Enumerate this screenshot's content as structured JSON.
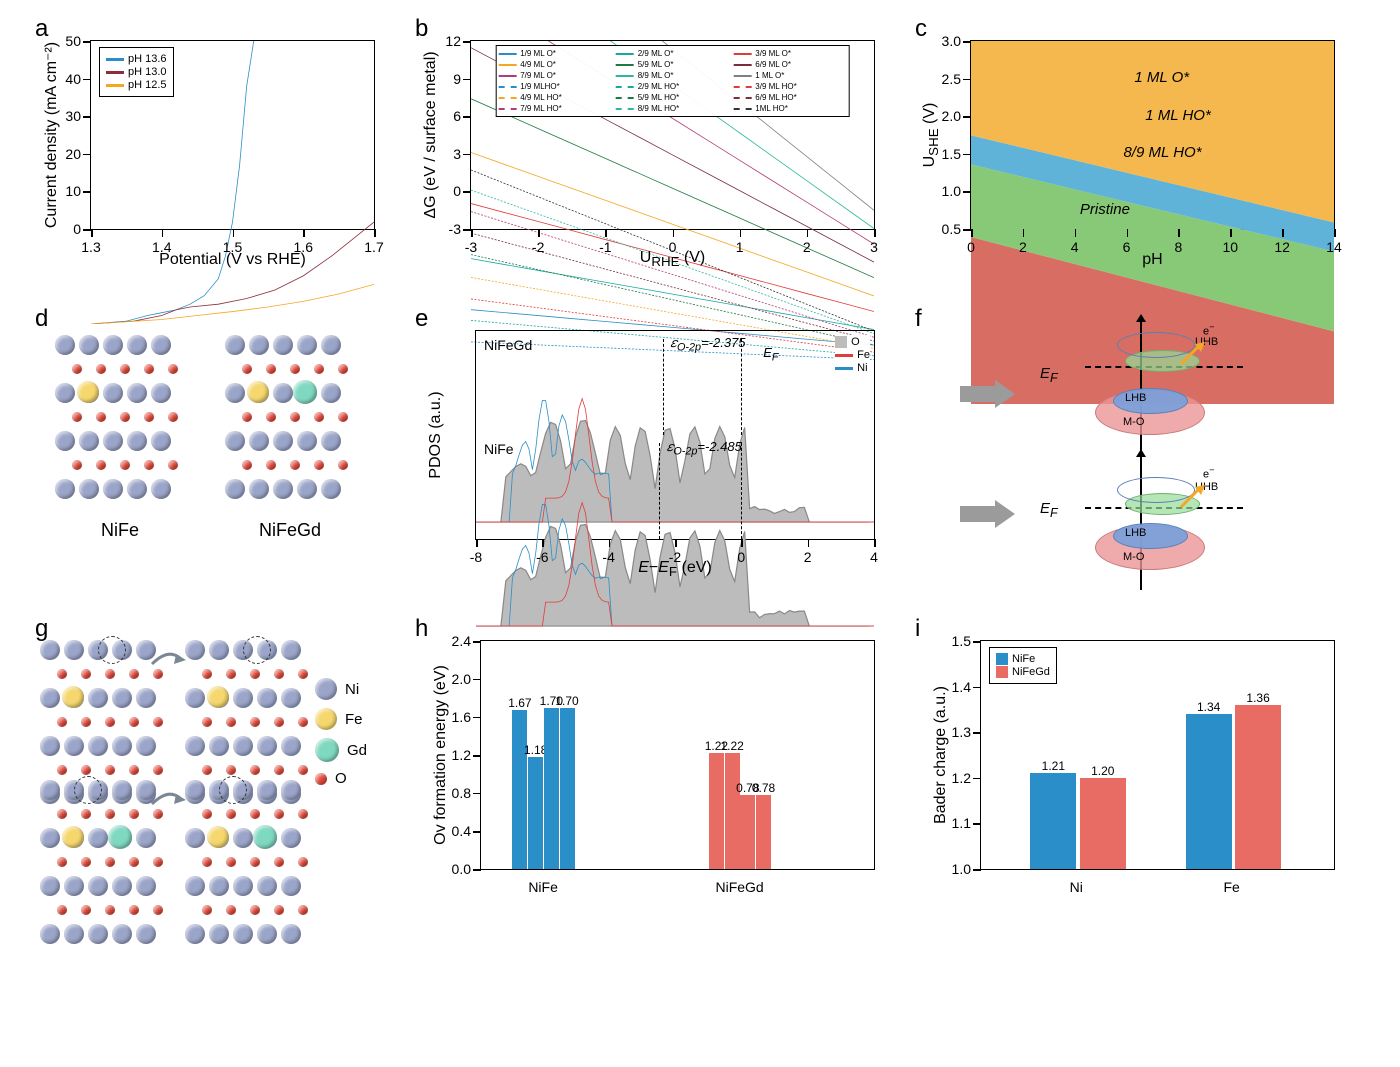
{
  "labels": {
    "a": "a",
    "b": "b",
    "c": "c",
    "d": "d",
    "e": "e",
    "f": "f",
    "g": "g",
    "h": "h",
    "i": "i"
  },
  "colors": {
    "blue": "#2a8fc9",
    "darkred": "#8b2e3c",
    "orange": "#f5a623",
    "red_bar": "#e86c63",
    "red_region": "#d86e63",
    "green_region": "#88c978",
    "blue_region": "#5fb3d9",
    "yellow_region": "#f5b84f",
    "ni_atom": "#9ba5c9",
    "fe_atom": "#f5d76e",
    "gd_atom": "#7fd8c0",
    "o_atom": "#e94b3c",
    "gray_arrow": "#9b9b9b"
  },
  "panel_a": {
    "type": "line",
    "xlabel": "Potential (V vs RHE)",
    "ylabel": "Current density (mA cm⁻²)",
    "xlim": [
      1.3,
      1.7
    ],
    "xtick_step": 0.1,
    "ylim": [
      0,
      50
    ],
    "ytick_step": 10,
    "series": [
      {
        "name": "pH 13.6",
        "color": "#2a8fc9",
        "points": [
          [
            1.3,
            0
          ],
          [
            1.35,
            0.5
          ],
          [
            1.38,
            1.5
          ],
          [
            1.4,
            2
          ],
          [
            1.42,
            2.5
          ],
          [
            1.44,
            3.5
          ],
          [
            1.46,
            5
          ],
          [
            1.48,
            8
          ],
          [
            1.49,
            12
          ],
          [
            1.5,
            18
          ],
          [
            1.51,
            28
          ],
          [
            1.52,
            42
          ],
          [
            1.53,
            50
          ]
        ]
      },
      {
        "name": "pH 13.0",
        "color": "#8b2e3c",
        "points": [
          [
            1.3,
            0
          ],
          [
            1.36,
            0.5
          ],
          [
            1.4,
            1.5
          ],
          [
            1.42,
            2.5
          ],
          [
            1.44,
            3
          ],
          [
            1.48,
            3.5
          ],
          [
            1.52,
            4.5
          ],
          [
            1.56,
            6
          ],
          [
            1.6,
            8.5
          ],
          [
            1.64,
            12
          ],
          [
            1.68,
            16
          ],
          [
            1.7,
            18
          ]
        ]
      },
      {
        "name": "pH 12.5",
        "color": "#f5a623",
        "points": [
          [
            1.3,
            0
          ],
          [
            1.4,
            0.8
          ],
          [
            1.45,
            1.5
          ],
          [
            1.5,
            2.2
          ],
          [
            1.55,
            3
          ],
          [
            1.6,
            4
          ],
          [
            1.65,
            5.3
          ],
          [
            1.7,
            7
          ]
        ]
      }
    ]
  },
  "panel_b": {
    "type": "line",
    "xlabel": "Uᴿᴴᴱ (V)",
    "xlabel_rich": "U_RHE (V)",
    "ylabel": "ΔG (eV / surface metal)",
    "xlim": [
      -3,
      3
    ],
    "xtick_step": 1,
    "ylim": [
      -3,
      12
    ],
    "ytick_step": 3,
    "legend_cols": 3,
    "series": [
      {
        "name": "1/9 ML O*",
        "color": "#2a8fc9",
        "dash": false,
        "g0": 0.9,
        "slope": -0.22
      },
      {
        "name": "2/9 ML O*",
        "color": "#17a9a0",
        "dash": false,
        "g0": 1.7,
        "slope": -0.44
      },
      {
        "name": "3/9 ML O*",
        "color": "#e13c3c",
        "dash": false,
        "g0": 2.6,
        "slope": -0.67
      },
      {
        "name": "4/9 ML O*",
        "color": "#f5a623",
        "dash": false,
        "g0": 3.4,
        "slope": -0.89
      },
      {
        "name": "5/9 ML O*",
        "color": "#1e7a3e",
        "dash": false,
        "g0": 4.3,
        "slope": -1.11
      },
      {
        "name": "6/9 ML O*",
        "color": "#7a2e3c",
        "dash": false,
        "g0": 5.1,
        "slope": -1.33
      },
      {
        "name": "7/9 ML O*",
        "color": "#b23c7a",
        "dash": false,
        "g0": 6.0,
        "slope": -1.56
      },
      {
        "name": "8/9 ML O*",
        "color": "#2fb8a0",
        "dash": false,
        "g0": 6.8,
        "slope": -1.78
      },
      {
        "name": "1 ML O*",
        "color": "#808080",
        "dash": false,
        "g0": 7.7,
        "slope": -2.0
      },
      {
        "name": "1/9 MLHO*",
        "color": "#2a8fc9",
        "dash": true,
        "g0": 0.25,
        "slope": -0.11
      },
      {
        "name": "2/9 ML HO*",
        "color": "#17a9a0",
        "dash": true,
        "g0": 0.5,
        "slope": -0.22
      },
      {
        "name": "3/9 ML HO*",
        "color": "#e13c3c",
        "dash": true,
        "g0": 0.75,
        "slope": -0.33
      },
      {
        "name": "4/9 ML HO*",
        "color": "#f5a623",
        "dash": true,
        "g0": 1.0,
        "slope": -0.44
      },
      {
        "name": "5/9 ML HO*",
        "color": "#1e7a3e",
        "dash": true,
        "g0": 1.25,
        "slope": -0.56
      },
      {
        "name": "6/9 ML HO*",
        "color": "#7a2e3c",
        "dash": true,
        "g0": 1.5,
        "slope": -0.67
      },
      {
        "name": "7/9 ML HO*",
        "color": "#b23c7a",
        "dash": true,
        "g0": 1.75,
        "slope": -0.78
      },
      {
        "name": "8/9 ML HO*",
        "color": "#2fb8a0",
        "dash": true,
        "g0": 2.0,
        "slope": -0.89
      },
      {
        "name": "1ML HO*",
        "color": "#333333",
        "dash": true,
        "g0": 2.2,
        "slope": -1.0
      }
    ]
  },
  "panel_c": {
    "type": "phase",
    "xlabel": "pH",
    "ylabel": "Uₛₕₑ (V)",
    "ylabel_rich": "U_SHE (V)",
    "xlim": [
      0,
      14
    ],
    "xtick_step": 2,
    "ylim": [
      0.5,
      3.0
    ],
    "ytick_step": 0.5,
    "regions": [
      {
        "name": "Pristine",
        "color": "#d86e63",
        "top_at0": 1.65,
        "top_at14": 1.0
      },
      {
        "name": "8/9 ML HO*",
        "color": "#88c978",
        "top_at0": 2.15,
        "top_at14": 1.55
      },
      {
        "name": "1 ML HO*",
        "color": "#5fb3d9",
        "top_at0": 2.35,
        "top_at14": 1.75
      },
      {
        "name": "1 ML O*",
        "color": "#f5b84f",
        "top_at0": 3.0,
        "top_at14": 3.0
      }
    ]
  },
  "panel_d": {
    "left_label": "NiFe",
    "right_label": "NiFeGd"
  },
  "panel_e": {
    "type": "pdos",
    "xlabel": "E−E_F (eV)",
    "ylabel": "PDOS (a.u.)",
    "xlim": [
      -8,
      4
    ],
    "xtick_step": 2,
    "legend": [
      {
        "name": "O",
        "color": "#999",
        "type": "fill"
      },
      {
        "name": "Fe",
        "color": "#e13c3c",
        "type": "line"
      },
      {
        "name": "Ni",
        "color": "#2a8fc9",
        "type": "line"
      }
    ],
    "subpanels": [
      {
        "title": "NiFeGd",
        "e_o2p": -2.375,
        "e_o2p_text": "εₒ₋₂ₚ=-2.375",
        "ef_text": "E_F"
      },
      {
        "title": "NiFe",
        "e_o2p": -2.485,
        "e_o2p_text": "εₒ₋₂ₚ=-2.485"
      }
    ]
  },
  "panel_f": {
    "ef_label": "E_F",
    "bands": [
      "UHB",
      "LHB",
      "M-O"
    ],
    "e_label": "e⁻"
  },
  "panel_g": {
    "atom_legend": [
      {
        "name": "Ni",
        "color": "#9ba5c9",
        "size": 22
      },
      {
        "name": "Fe",
        "color": "#f5d76e",
        "size": 22
      },
      {
        "name": "Gd",
        "color": "#7fd8c0",
        "size": 24
      },
      {
        "name": "O",
        "color": "#e94b3c",
        "size": 12
      }
    ]
  },
  "panel_h": {
    "type": "bar",
    "xlabel_cats": [
      "NiFe",
      "NiFeGd"
    ],
    "ylabel": "Ov formation energy (eV)",
    "ylim": [
      0,
      2.4
    ],
    "ytick_step": 0.4,
    "groups": [
      {
        "name": "NiFe",
        "color": "#2a8fc9",
        "values": [
          1.67,
          1.18,
          1.7,
          1.7
        ]
      },
      {
        "name": "NiFeGd",
        "color": "#e86c63",
        "values": [
          1.22,
          1.22,
          0.78,
          0.78
        ]
      }
    ]
  },
  "panel_i": {
    "type": "bar",
    "xlabel_cats": [
      "Ni",
      "Fe"
    ],
    "ylabel": "Bader charge (a.u.)",
    "ylim": [
      1.0,
      1.5
    ],
    "ytick_step": 0.1,
    "legend": [
      {
        "name": "NiFe",
        "color": "#2a8fc9"
      },
      {
        "name": "NiFeGd",
        "color": "#e86c63"
      }
    ],
    "groups": [
      {
        "cat": "Ni",
        "values": [
          {
            "v": 1.21,
            "color": "#2a8fc9"
          },
          {
            "v": 1.2,
            "color": "#e86c63"
          }
        ]
      },
      {
        "cat": "Fe",
        "values": [
          {
            "v": 1.34,
            "color": "#2a8fc9"
          },
          {
            "v": 1.36,
            "color": "#e86c63"
          }
        ]
      }
    ]
  }
}
